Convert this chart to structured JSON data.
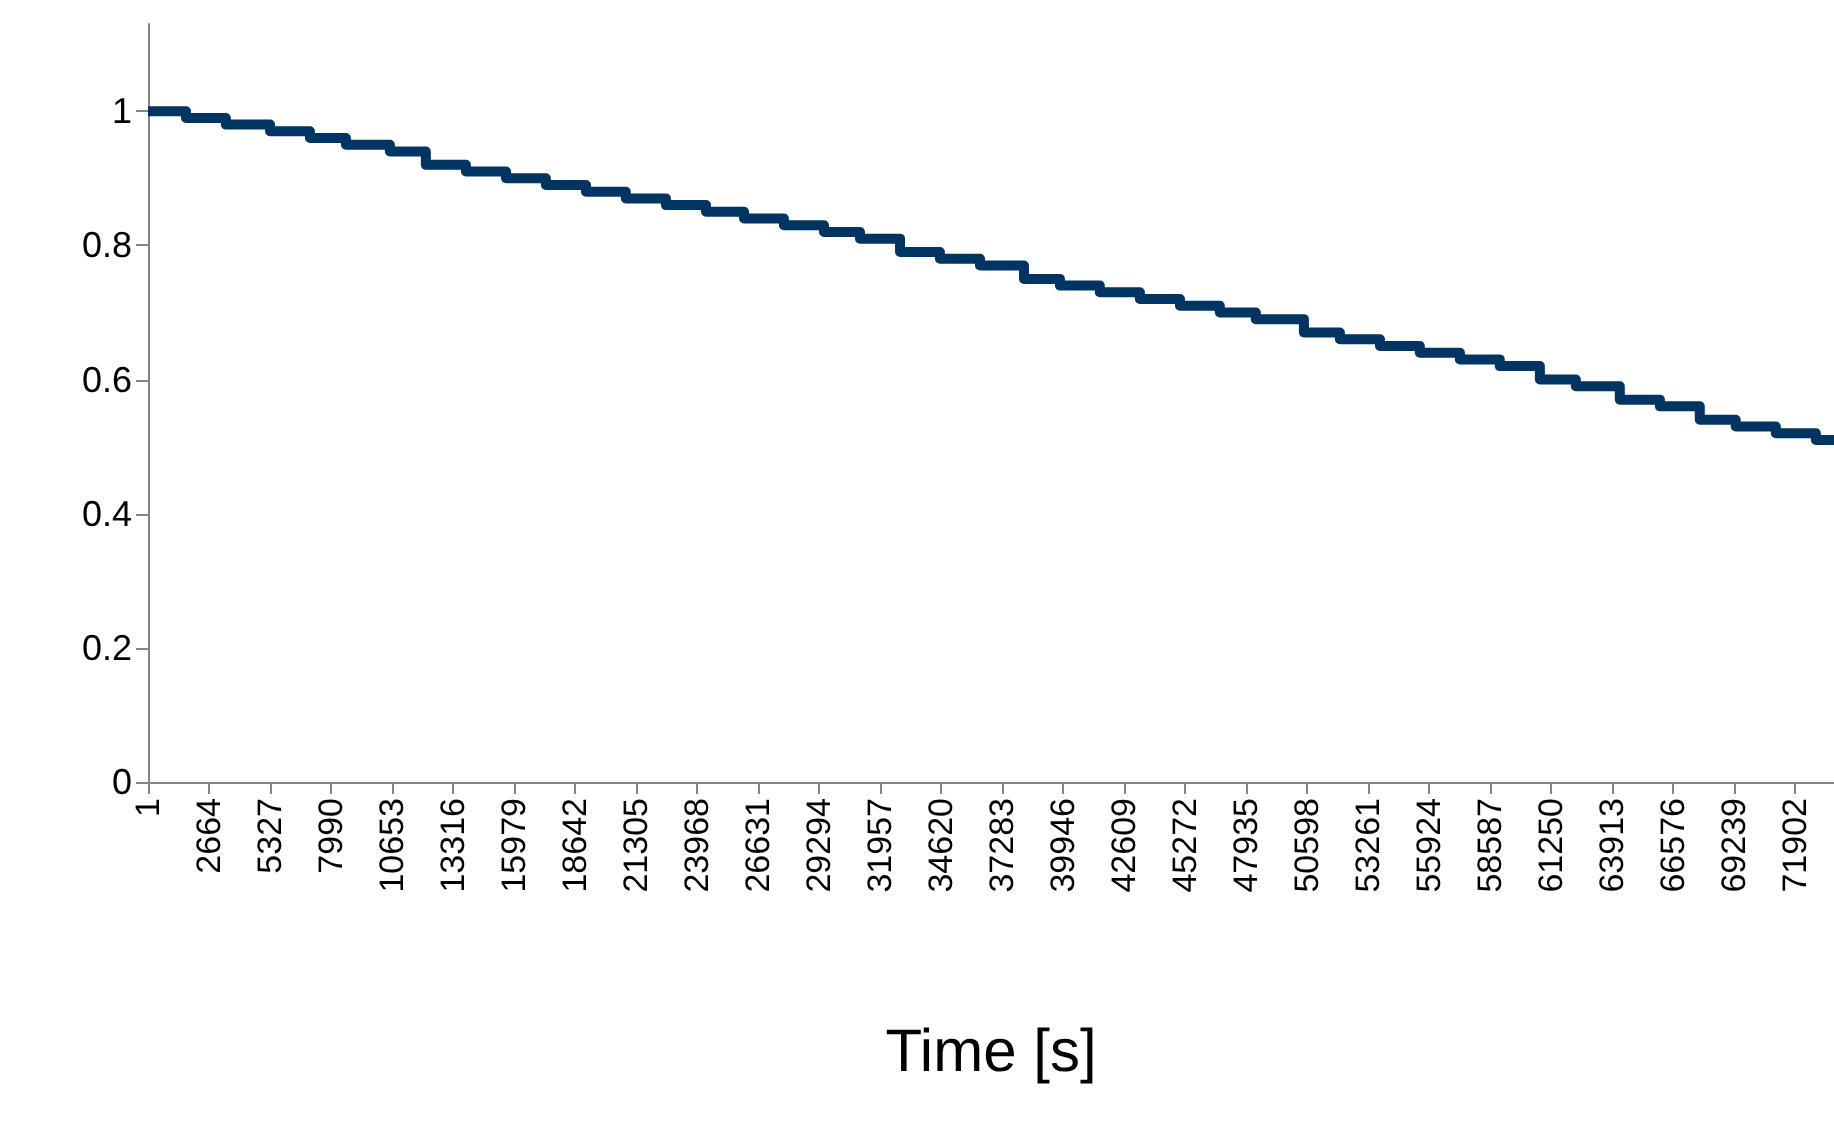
{
  "chart_data": {
    "type": "step",
    "xlabel": "Time [s]",
    "marker": "none",
    "line_style": "solid",
    "x": [
      1,
      1660,
      3400,
      5330,
      7070,
      8640,
      10560,
      12130,
      13880,
      15630,
      17370,
      19120,
      20860,
      22610,
      24360,
      26020,
      27760,
      29510,
      31080,
      32830,
      34570,
      36320,
      38240,
      39810,
      41550,
      43300,
      45050,
      46790,
      48360,
      50460,
      52030,
      53780,
      55520,
      57270,
      59010,
      60760,
      62330,
      64250,
      66000,
      67740,
      69310,
      71060,
      72810,
      73600
    ],
    "series": [
      {
        "color": "#003462",
        "values": [
          1,
          0.99,
          0.98,
          0.97,
          0.96,
          0.95,
          0.94,
          0.92,
          0.91,
          0.9,
          0.89,
          0.88,
          0.87,
          0.86,
          0.85,
          0.84,
          0.83,
          0.82,
          0.81,
          0.79,
          0.78,
          0.77,
          0.75,
          0.74,
          0.73,
          0.72,
          0.71,
          0.7,
          0.69,
          0.67,
          0.66,
          0.65,
          0.64,
          0.63,
          0.62,
          0.6,
          0.59,
          0.57,
          0.56,
          0.54,
          0.53,
          0.52,
          0.51,
          0.51
        ]
      }
    ],
    "xlim": [
      1,
      73600
    ],
    "ylim": [
      0,
      1.13
    ],
    "xticks": [
      1,
      2664,
      5327,
      7990,
      10653,
      13316,
      15979,
      18642,
      21305,
      23968,
      26631,
      29294,
      31957,
      34620,
      37283,
      39946,
      42609,
      45272,
      47935,
      50598,
      53261,
      55924,
      58587,
      61250,
      63913,
      66576,
      69239,
      71902
    ],
    "yticks": [
      0,
      0.2,
      0.4,
      0.6,
      0.8,
      1
    ]
  }
}
